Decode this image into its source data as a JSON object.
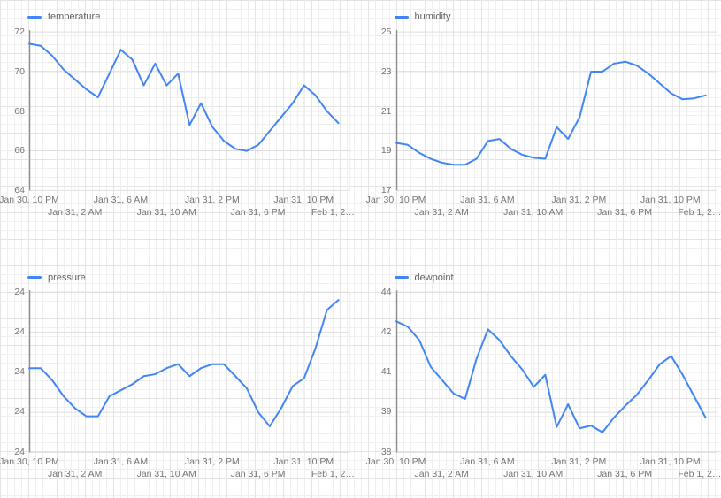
{
  "page_type": "sensor-dashboard",
  "accent_color": "#4285f4",
  "chart_data": [
    {
      "type": "line",
      "series": "temperature",
      "color": "#4285f4",
      "legend_position": "top-left",
      "grid": true,
      "x_ticks": [
        "Jan 30, 10 PM",
        "Jan 31, 2 AM",
        "Jan 31, 6 AM",
        "Jan 31, 10 AM",
        "Jan 31, 2 PM",
        "Jan 31, 6 PM",
        "Jan 31, 10 PM",
        "Feb 1, 2…"
      ],
      "y_tick_labels": [
        "72",
        "70",
        "68",
        "66",
        "64"
      ],
      "y_tick_values": [
        72,
        70,
        68,
        66,
        64
      ],
      "ylim": [
        64,
        72
      ],
      "values": [
        71.4,
        71.3,
        70.8,
        70.1,
        69.6,
        69.1,
        68.7,
        69.9,
        71.1,
        70.6,
        69.3,
        70.4,
        69.3,
        69.9,
        67.3,
        68.4,
        67.2,
        66.5,
        66.1,
        66.0,
        66.3,
        67.0,
        67.7,
        68.4,
        69.3,
        68.8,
        68.0,
        67.4
      ]
    },
    {
      "type": "line",
      "series": "humidity",
      "color": "#4285f4",
      "legend_position": "top-left",
      "grid": true,
      "x_ticks": [
        "Jan 30, 10 PM",
        "Jan 31, 2 AM",
        "Jan 31, 6 AM",
        "Jan 31, 10 AM",
        "Jan 31, 2 PM",
        "Jan 31, 6 PM",
        "Jan 31, 10 PM",
        "Feb 1, 2…"
      ],
      "y_tick_labels": [
        "25",
        "23",
        "21",
        "19",
        "17"
      ],
      "y_tick_values": [
        25,
        23,
        21,
        19,
        17
      ],
      "ylim": [
        17,
        25
      ],
      "values": [
        19.4,
        19.3,
        18.9,
        18.6,
        18.4,
        18.3,
        18.3,
        18.6,
        19.5,
        19.6,
        19.1,
        18.8,
        18.65,
        18.6,
        20.2,
        19.6,
        20.7,
        23.0,
        23.0,
        23.4,
        23.5,
        23.3,
        22.9,
        22.4,
        21.9,
        21.6,
        21.65,
        21.8
      ]
    },
    {
      "type": "line",
      "series": "pressure",
      "color": "#4285f4",
      "legend_position": "top-left",
      "grid": true,
      "x_ticks": [
        "Jan 30, 10 PM",
        "Jan 31, 2 AM",
        "Jan 31, 6 AM",
        "Jan 31, 10 AM",
        "Jan 31, 2 PM",
        "Jan 31, 6 PM",
        "Jan 31, 10 PM",
        "Feb 1, 2…"
      ],
      "y_tick_labels": [
        "24",
        "24",
        "24",
        "24",
        "24"
      ],
      "y_tick_values": [
        24.0,
        23.9,
        23.8,
        23.7,
        23.6
      ],
      "ylim": [
        23.6,
        24.0
      ],
      "values": [
        23.81,
        23.81,
        23.78,
        23.74,
        23.71,
        23.69,
        23.69,
        23.74,
        23.755,
        23.77,
        23.79,
        23.795,
        23.81,
        23.82,
        23.79,
        23.81,
        23.82,
        23.82,
        23.79,
        23.76,
        23.7,
        23.665,
        23.71,
        23.765,
        23.785,
        23.86,
        23.955,
        23.98
      ]
    },
    {
      "type": "line",
      "series": "dewpoint",
      "color": "#4285f4",
      "legend_position": "top-left",
      "grid": true,
      "x_ticks": [
        "Jan 30, 10 PM",
        "Jan 31, 2 AM",
        "Jan 31, 6 AM",
        "Jan 31, 10 AM",
        "Jan 31, 2 PM",
        "Jan 31, 6 PM",
        "Jan 31, 10 PM",
        "Feb 1, 2…"
      ],
      "y_tick_labels": [
        "44",
        "42",
        "41",
        "39",
        "38"
      ],
      "y_tick_values": [
        44,
        42.5,
        41,
        39.5,
        38
      ],
      "ylim": [
        38,
        44
      ],
      "values": [
        42.9,
        42.7,
        42.2,
        41.2,
        40.7,
        40.2,
        40.0,
        41.5,
        42.6,
        42.2,
        41.6,
        41.1,
        40.45,
        40.9,
        38.95,
        39.8,
        38.9,
        39.0,
        38.75,
        39.3,
        39.75,
        40.15,
        40.7,
        41.3,
        41.6,
        40.9,
        40.1,
        39.3
      ]
    }
  ]
}
